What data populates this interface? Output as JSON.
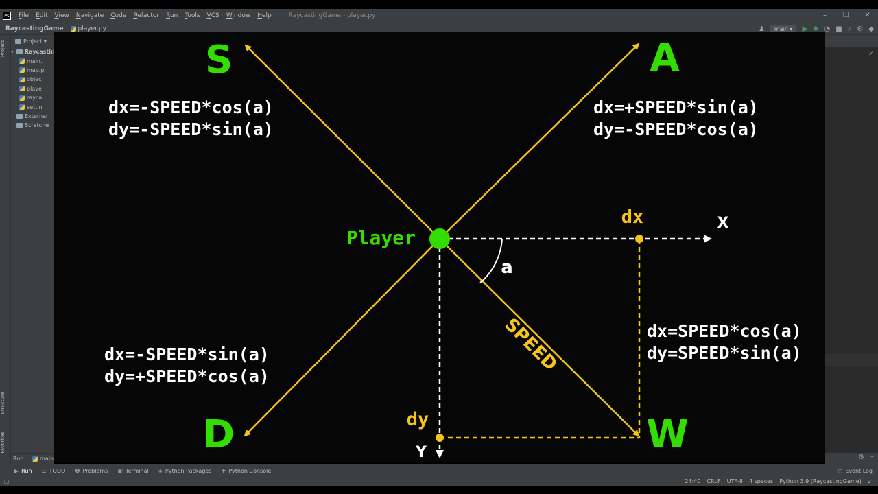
{
  "menubar": {
    "logo": "PC",
    "items": [
      "File",
      "Edit",
      "View",
      "Navigate",
      "Code",
      "Refactor",
      "Run",
      "Tools",
      "VCS",
      "Window",
      "Help"
    ],
    "window_title": "RaycastingGame - player.py",
    "controls": [
      "–",
      "❐",
      "✕"
    ]
  },
  "navbar": {
    "project": "RaycastingGame",
    "file": "player.py",
    "branch": "main ▾"
  },
  "left_strip": {
    "project_tab": "Project",
    "structure_tab": "Structure",
    "favorites_tab": "Favorites"
  },
  "project_panel": {
    "header": "Project ▾",
    "root": "Raycasting",
    "files": [
      "main.",
      "map.p",
      "objec",
      "playe",
      "rayca",
      "settin"
    ],
    "external": "External",
    "scratches": "Scratche"
  },
  "run_strip": {
    "label": "Run:",
    "config": "main"
  },
  "diagram": {
    "corner_s": "S",
    "corner_a": "A",
    "corner_d": "D",
    "corner_w": "W",
    "formula_s_dx": "dx=-SPEED*cos(a)",
    "formula_s_dy": "dy=-SPEED*sin(a)",
    "formula_a_dx": "dx=+SPEED*sin(a)",
    "formula_a_dy": "dy=-SPEED*cos(a)",
    "formula_d_dx": "dx=-SPEED*sin(a)",
    "formula_d_dy": "dy=+SPEED*cos(a)",
    "formula_w_dx": "dx=SPEED*cos(a)",
    "formula_w_dy": "dy=SPEED*sin(a)",
    "player_label": "Player",
    "dx_label": "dx",
    "dy_label": "dy",
    "x_axis": "X",
    "y_axis": "Y",
    "angle_label": "a",
    "speed_label": "SPEED",
    "colors": {
      "green": "#33dd00",
      "yellow": "#f5c518",
      "white": "#ffffff"
    }
  },
  "toolbar_bottom": {
    "tabs": [
      {
        "icon": "▶",
        "label": "Run"
      },
      {
        "icon": "☰",
        "label": "TODO"
      },
      {
        "icon": "❶",
        "label": "Problems"
      },
      {
        "icon": "▣",
        "label": "Terminal"
      },
      {
        "icon": "◈",
        "label": "Python Packages"
      },
      {
        "icon": "✚",
        "label": "Python Console"
      }
    ],
    "event_log": "Event Log"
  },
  "statusbar": {
    "position": "24:40",
    "line_sep": "CRLF",
    "encoding": "UTF-8",
    "indent": "4 spaces",
    "interpreter": "Python 3.9 (RaycastingGame)"
  }
}
